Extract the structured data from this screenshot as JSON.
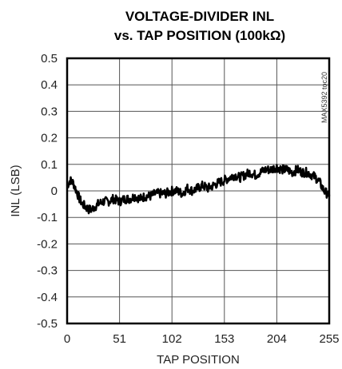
{
  "chart_data": {
    "type": "line",
    "title_line1": "VOLTAGE-DIVIDER INL",
    "title_line2": "vs. TAP POSITION (100kΩ)",
    "xlabel": "TAP POSITION",
    "ylabel": "INL (LSB)",
    "side_note": "MAX5392 toc20",
    "xlim": [
      0,
      255
    ],
    "ylim": [
      -0.5,
      0.5
    ],
    "x_ticks": [
      "0",
      "51",
      "102",
      "153",
      "204",
      "255"
    ],
    "y_ticks": [
      "0.5",
      "0.4",
      "0.3",
      "0.2",
      "0.1",
      "0",
      "-0.1",
      "-0.2",
      "-0.3",
      "-0.4",
      "-0.5"
    ],
    "grid": true,
    "series": [
      {
        "x": [
          0,
          3,
          6,
          9,
          12,
          15,
          18,
          21,
          24,
          27,
          30,
          35,
          40,
          45,
          51,
          56,
          61,
          66,
          71,
          76,
          81,
          86,
          91,
          96,
          102,
          107,
          112,
          117,
          122,
          127,
          132,
          137,
          142,
          147,
          153,
          158,
          163,
          168,
          173,
          178,
          183,
          188,
          193,
          198,
          204,
          209,
          214,
          219,
          224,
          229,
          234,
          238,
          242,
          246,
          250,
          253,
          255
        ],
        "y": [
          0.02,
          0.04,
          0.03,
          0.0,
          -0.03,
          -0.05,
          -0.06,
          -0.07,
          -0.07,
          -0.06,
          -0.05,
          -0.04,
          -0.04,
          -0.03,
          -0.04,
          -0.03,
          -0.03,
          -0.02,
          -0.03,
          -0.02,
          -0.02,
          -0.01,
          -0.01,
          -0.01,
          0.0,
          0.0,
          -0.01,
          0.01,
          0.0,
          0.01,
          0.02,
          0.01,
          0.02,
          0.03,
          0.04,
          0.05,
          0.06,
          0.05,
          0.06,
          0.07,
          0.06,
          0.07,
          0.08,
          0.08,
          0.09,
          0.08,
          0.08,
          0.07,
          0.08,
          0.07,
          0.07,
          0.06,
          0.05,
          0.03,
          0.0,
          -0.01,
          -0.02
        ]
      }
    ]
  }
}
